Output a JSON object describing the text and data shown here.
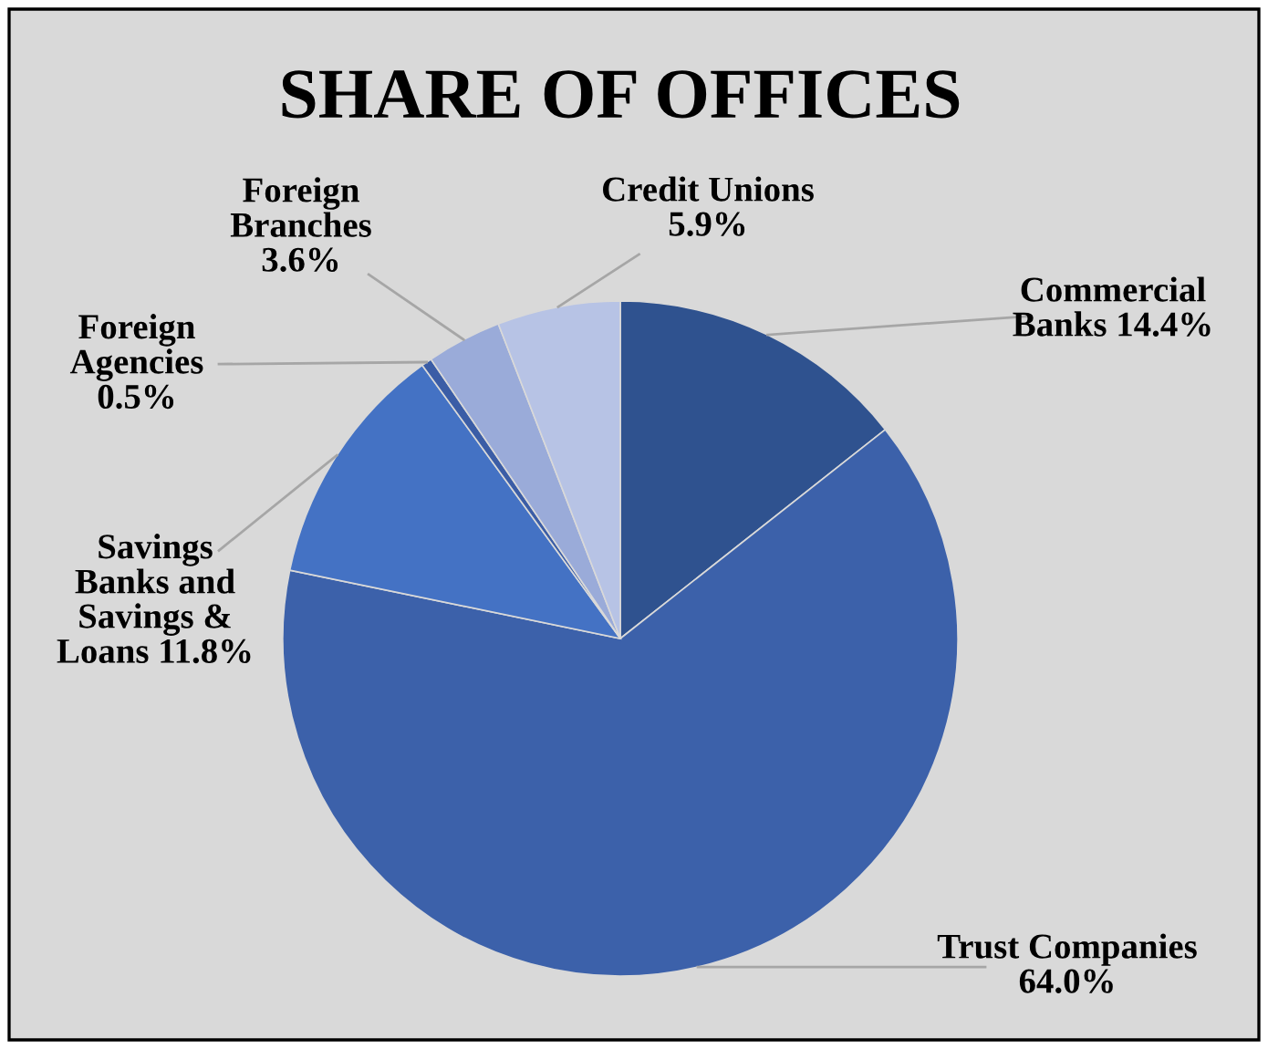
{
  "chart_data": {
    "type": "pie",
    "title": "SHARE OF OFFICES",
    "categories": [
      "Commercial\nBanks",
      "Trust Companies",
      "Savings\nBanks and\nSavings &\nLoans",
      "Foreign\nAgencies",
      "Foreign\nBranches",
      "Credit Unions"
    ],
    "values": [
      14.4,
      64.0,
      11.8,
      0.5,
      3.6,
      5.9
    ],
    "colors": [
      "#2f528f",
      "#3c61aa",
      "#4472c4",
      "#3b5da6",
      "#9aabd9",
      "#b7c3e5"
    ],
    "value_labels": [
      "14.4%",
      "64.0%",
      "11.8%",
      "0.5%",
      "3.6%",
      "5.9%"
    ],
    "legend": false
  }
}
